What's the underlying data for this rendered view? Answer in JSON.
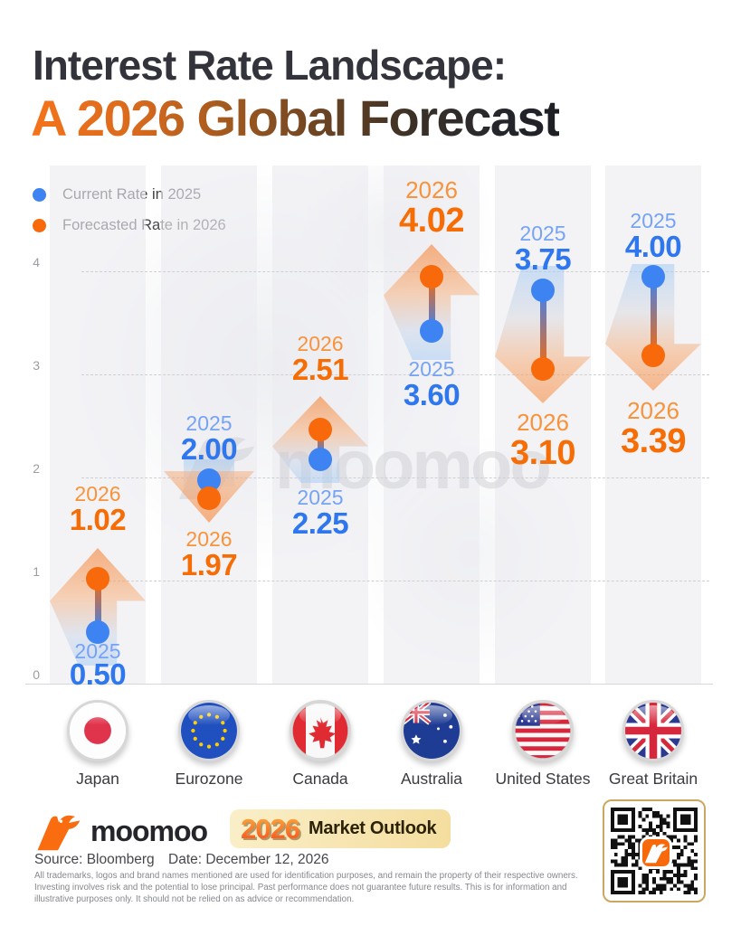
{
  "title": {
    "line1": "Interest Rate Landscape:",
    "line2": "A 2026 Global Forecast"
  },
  "legend": {
    "items": [
      {
        "label": "Current Rate in 2025",
        "color": "#3D83F2"
      },
      {
        "label": "Forecasted Rate in 2026",
        "color": "#F7690A"
      }
    ]
  },
  "axis": {
    "ticks": [
      "4",
      "3",
      "2",
      "1",
      "0"
    ]
  },
  "chart_data": {
    "type": "scatter",
    "subtype": "dumbbell-arrow",
    "categories": [
      "Japan",
      "Eurozone",
      "Canada",
      "Australia",
      "United States",
      "Great Britain"
    ],
    "series": [
      {
        "name": "Current Rate in 2025",
        "color": "#3D83F2",
        "values": [
          0.5,
          2.0,
          2.25,
          3.6,
          3.75,
          4.0
        ]
      },
      {
        "name": "Forecasted Rate in 2026",
        "color": "#F7690A",
        "values": [
          1.02,
          1.97,
          2.51,
          4.02,
          3.1,
          3.39
        ]
      }
    ],
    "trend": [
      "up",
      "down",
      "up",
      "up",
      "down",
      "down"
    ],
    "title": "Interest Rate Landscape: A 2026 Global Forecast",
    "xlabel": "",
    "ylabel": "",
    "ylim": [
      0,
      4
    ],
    "grid": "dashed horizontal at 0,1,2,3,4",
    "legend_position": "top-left"
  },
  "columns": [
    {
      "country": "Japan",
      "trend": "up",
      "above": {
        "year": "2026",
        "value": "1.02"
      },
      "below": {
        "year": "2025",
        "value": "0.50"
      }
    },
    {
      "country": "Eurozone",
      "trend": "down",
      "above": {
        "year": "2025",
        "value": "2.00"
      },
      "below": {
        "year": "2026",
        "value": "1.97"
      }
    },
    {
      "country": "Canada",
      "trend": "up",
      "above": {
        "year": "2026",
        "value": "2.51"
      },
      "below": {
        "year": "2025",
        "value": "2.25"
      }
    },
    {
      "country": "Australia",
      "trend": "up",
      "above": {
        "year": "2026",
        "value": "4.02"
      },
      "below": {
        "year": "2025",
        "value": "3.60"
      }
    },
    {
      "country": "United States",
      "trend": "down",
      "above": {
        "year": "2025",
        "value": "3.75"
      },
      "below": {
        "year": "2026",
        "value": "3.10"
      }
    },
    {
      "country": "Great Britain",
      "trend": "down",
      "above": {
        "year": "2025",
        "value": "4.00"
      },
      "below": {
        "year": "2026",
        "value": "3.39"
      }
    }
  ],
  "watermark": {
    "text": "moomoo"
  },
  "footer": {
    "brand": "moomoo",
    "badge_year": "2026",
    "badge_label": "Market Outlook",
    "source": "Source: Bloomberg",
    "date": "Date: December 12, 2026",
    "disclaimer": "All trademarks, logos and brand names mentioned are used for identification purposes, and remain the property of their respective owners. Investing involves risk and the potential to lose principal. Past performance does not guarantee future results. This is for information and illustrative purposes only. It should not be relied on as advice or recommendation."
  }
}
